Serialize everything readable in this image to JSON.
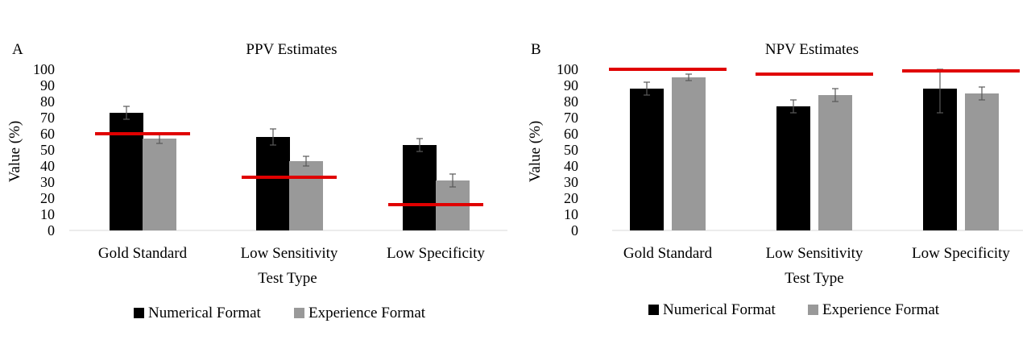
{
  "chart_data": [
    {
      "type": "bar",
      "panel": "A",
      "title": "PPV Estimates",
      "xlabel": "Test Type",
      "ylabel": "Value (%)",
      "ylim": [
        0,
        100
      ],
      "yticks": [
        0,
        10,
        20,
        30,
        40,
        50,
        60,
        70,
        80,
        90,
        100
      ],
      "categories": [
        "Gold Standard",
        "Low Sensitivity",
        "Low Specificity"
      ],
      "series": [
        {
          "name": "Numerical Format",
          "color": "#000000",
          "values": [
            73,
            58,
            53
          ],
          "error": [
            4,
            5,
            4
          ]
        },
        {
          "name": "Experience Format",
          "color": "#999999",
          "values": [
            57,
            43,
            31
          ],
          "error": [
            3,
            3,
            4
          ]
        }
      ],
      "reference_values": [
        60,
        33,
        16
      ],
      "reference_color": "#e00000",
      "legend_position": "bottom",
      "grid": false
    },
    {
      "type": "bar",
      "panel": "B",
      "title": "NPV Estimates",
      "xlabel": "Test Type",
      "ylabel": "Value (%)",
      "ylim": [
        0,
        100
      ],
      "yticks": [
        0,
        10,
        20,
        30,
        40,
        50,
        60,
        70,
        80,
        90,
        100
      ],
      "categories": [
        "Gold Standard",
        "Low Sensitivity",
        "Low Specificity"
      ],
      "series": [
        {
          "name": "Numerical Format",
          "color": "#000000",
          "values": [
            88,
            77,
            88
          ],
          "error": [
            4,
            4,
            15
          ]
        },
        {
          "name": "Experience Format",
          "color": "#999999",
          "values": [
            95,
            84,
            85
          ],
          "error": [
            2,
            4,
            4
          ]
        }
      ],
      "reference_values": [
        100,
        97,
        99
      ],
      "reference_color": "#e00000",
      "legend_position": "bottom",
      "grid": false
    }
  ]
}
